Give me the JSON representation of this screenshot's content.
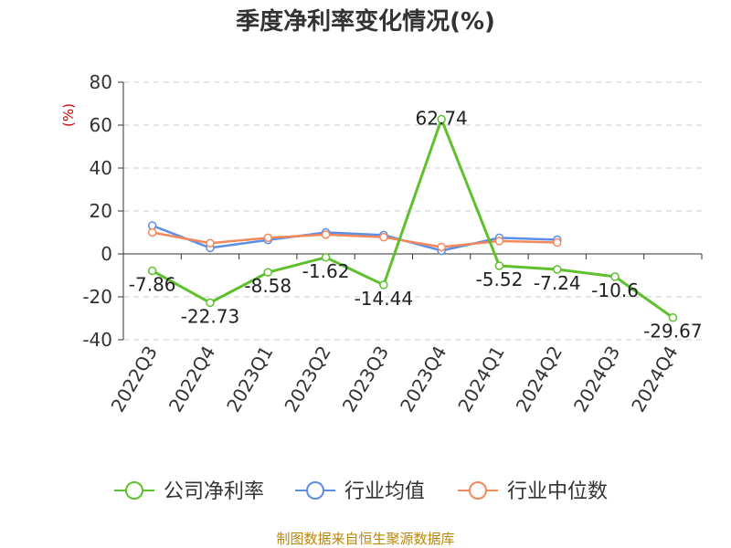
{
  "chart_data": {
    "type": "line",
    "title": "季度净利率变化情况(%)",
    "unit_label": "(%)",
    "categories": [
      "2022Q3",
      "2022Q4",
      "2023Q1",
      "2023Q2",
      "2023Q3",
      "2023Q4",
      "2024Q1",
      "2024Q2",
      "2024Q3",
      "2024Q4"
    ],
    "ylim": [
      -40,
      80
    ],
    "yticks": [
      -40,
      -20,
      0,
      20,
      40,
      60,
      80
    ],
    "grid": true,
    "legend_position": "bottom",
    "series": [
      {
        "name": "公司净利率",
        "color": "#5dc02c",
        "values": [
          -7.86,
          -22.73,
          -8.58,
          -1.62,
          -14.44,
          62.74,
          -5.52,
          -7.24,
          -10.6,
          -29.67
        ],
        "labels": [
          "-7.86",
          "-22.73",
          "-8.58",
          "-1.62",
          "-14.44",
          "62.74",
          "-5.52",
          "-7.24",
          "-10.6",
          "-29.67"
        ]
      },
      {
        "name": "行业均值",
        "color": "#5b8ee6",
        "values": [
          13.2,
          2.8,
          6.5,
          10.0,
          8.8,
          1.5,
          7.5,
          6.6,
          null,
          null
        ]
      },
      {
        "name": "行业中位数",
        "color": "#f4885a",
        "values": [
          10.0,
          5.0,
          7.5,
          9.0,
          7.8,
          3.2,
          6.0,
          5.3,
          null,
          null
        ]
      }
    ]
  },
  "source": "制图数据来自恒生聚源数据库"
}
